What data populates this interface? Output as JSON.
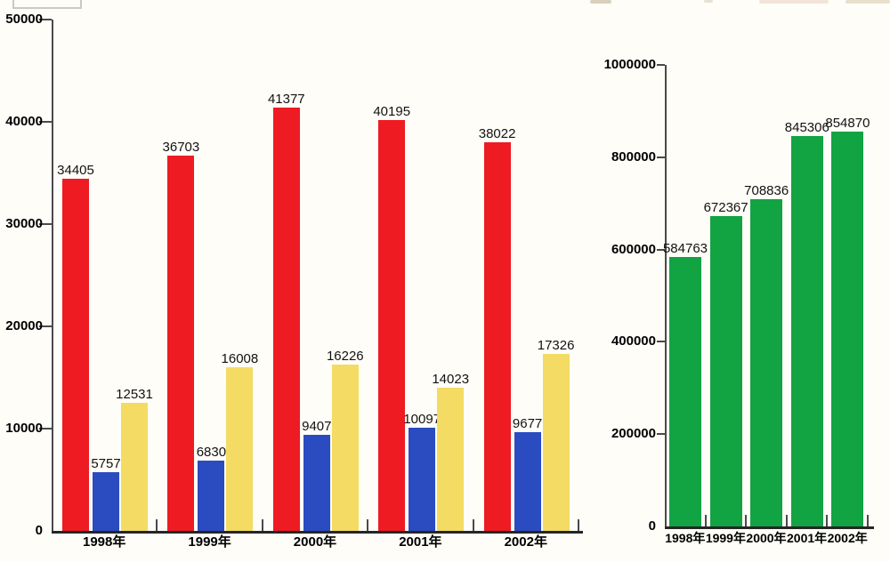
{
  "page": {
    "background": "#fffdf8"
  },
  "chart_data": [
    {
      "id": "left",
      "type": "bar",
      "title": "",
      "categories": [
        "1998年",
        "1999年",
        "2000年",
        "2001年",
        "2002年"
      ],
      "series": [
        {
          "name": "red",
          "color": "#ee1b23",
          "values": [
            34405,
            36703,
            41377,
            40195,
            38022
          ]
        },
        {
          "name": "blue",
          "color": "#2b4bc1",
          "values": [
            5757,
            6830,
            9407,
            10097,
            9677
          ]
        },
        {
          "name": "yellow",
          "color": "#f4db63",
          "values": [
            12531,
            16008,
            16226,
            14023,
            17326
          ]
        }
      ],
      "ylim": [
        0,
        50000
      ],
      "yticks": [
        0,
        10000,
        20000,
        30000,
        40000,
        50000
      ],
      "xlabel": "",
      "ylabel": "",
      "grid": false,
      "legend": "none",
      "value_labels": true
    },
    {
      "id": "right",
      "type": "bar",
      "title": "",
      "categories": [
        "1998年",
        "1999年",
        "2000年",
        "2001年",
        "2002年"
      ],
      "series": [
        {
          "name": "green",
          "color": "#12a343",
          "values": [
            584763,
            672367,
            708836,
            845306,
            854870
          ]
        }
      ],
      "ylim": [
        0,
        1000000
      ],
      "yticks": [
        0,
        200000,
        400000,
        600000,
        800000,
        1000000
      ],
      "xlabel": "",
      "ylabel": "",
      "grid": false,
      "legend": "none",
      "value_labels": true
    }
  ]
}
